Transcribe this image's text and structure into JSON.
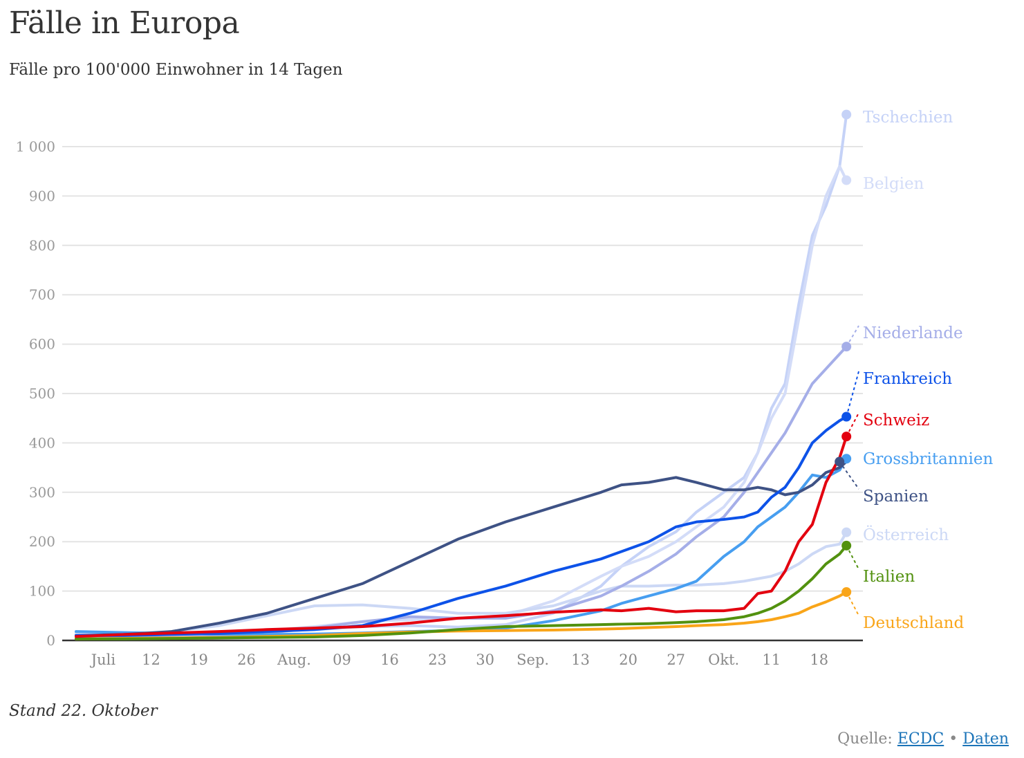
{
  "header": {
    "title": "Fälle in Europa",
    "subtitle": "Fälle pro 100'000 Einwohner in 14 Tagen"
  },
  "footer": {
    "note": "Stand 22. Oktober",
    "source_label": "Quelle:",
    "source_link": "ECDC",
    "separator": "•",
    "data_link": "Daten"
  },
  "chart_data": {
    "type": "line",
    "title": "Fälle in Europa",
    "subtitle": "Fälle pro 100'000 Einwohner in 14 Tagen",
    "xlabel": "",
    "ylabel": "",
    "ylim": [
      0,
      1000
    ],
    "yticks": [
      0,
      100,
      200,
      300,
      400,
      500,
      600,
      700,
      800,
      900,
      1000
    ],
    "ytick_labels": [
      "0",
      "100",
      "200",
      "300",
      "400",
      "500",
      "600",
      "700",
      "800",
      "900",
      "1 000"
    ],
    "x_start": "2020-07-01",
    "x_end": "2020-10-22",
    "xticks": [
      {
        "day": 4,
        "label": "Juli"
      },
      {
        "day": 11,
        "label": "12"
      },
      {
        "day": 18,
        "label": "19"
      },
      {
        "day": 25,
        "label": "26"
      },
      {
        "day": 32,
        "label": "Aug."
      },
      {
        "day": 39,
        "label": "09"
      },
      {
        "day": 46,
        "label": "16"
      },
      {
        "day": 53,
        "label": "23"
      },
      {
        "day": 60,
        "label": "30"
      },
      {
        "day": 67,
        "label": "Sep."
      },
      {
        "day": 74,
        "label": "13"
      },
      {
        "day": 81,
        "label": "20"
      },
      {
        "day": 88,
        "label": "27"
      },
      {
        "day": 95,
        "label": "Okt."
      },
      {
        "day": 102,
        "label": "11"
      },
      {
        "day": 109,
        "label": "18"
      }
    ],
    "grid": true,
    "legend": "direct-labels-right",
    "x_days": [
      0,
      7,
      14,
      21,
      28,
      35,
      42,
      49,
      56,
      63,
      70,
      77,
      80,
      84,
      88,
      91,
      95,
      98,
      100,
      102,
      104,
      106,
      108,
      110,
      112,
      113
    ],
    "series": [
      {
        "name": "Tschechien",
        "color": "#c5d2f7",
        "label_value": 1065,
        "values": [
          12,
          10,
          12,
          15,
          18,
          22,
          28,
          30,
          27,
          32,
          55,
          110,
          150,
          190,
          220,
          260,
          300,
          330,
          380,
          470,
          520,
          680,
          820,
          880,
          960,
          1065
        ]
      },
      {
        "name": "Belgien",
        "color": "#d3dcf8",
        "label_value": 932,
        "values": [
          15,
          15,
          15,
          15,
          20,
          28,
          38,
          42,
          45,
          50,
          80,
          130,
          150,
          170,
          200,
          230,
          270,
          320,
          380,
          450,
          500,
          650,
          800,
          900,
          960,
          932
        ]
      },
      {
        "name": "Niederlande",
        "color": "#a5aee8",
        "label_value": 595,
        "values": [
          5,
          5,
          6,
          8,
          15,
          25,
          38,
          48,
          45,
          45,
          60,
          90,
          110,
          140,
          175,
          210,
          250,
          300,
          340,
          380,
          420,
          470,
          520,
          550,
          580,
          595
        ]
      },
      {
        "name": "Frankreich",
        "color": "#0d52e8",
        "label_value": 453,
        "values": [
          10,
          10,
          12,
          14,
          18,
          22,
          30,
          55,
          85,
          110,
          140,
          165,
          180,
          200,
          230,
          240,
          245,
          250,
          260,
          290,
          310,
          350,
          400,
          425,
          445,
          453
        ]
      },
      {
        "name": "Schweiz",
        "color": "#e3000f",
        "label_value": 413,
        "values": [
          8,
          12,
          15,
          18,
          22,
          25,
          28,
          35,
          45,
          50,
          57,
          62,
          60,
          65,
          58,
          60,
          60,
          65,
          95,
          100,
          140,
          200,
          235,
          320,
          370,
          413
        ]
      },
      {
        "name": "Grossbritannien",
        "color": "#479ef0",
        "label_value": 368,
        "values": [
          18,
          16,
          14,
          13,
          12,
          13,
          15,
          18,
          20,
          25,
          40,
          60,
          75,
          90,
          105,
          120,
          170,
          200,
          230,
          250,
          270,
          300,
          335,
          330,
          345,
          368
        ]
      },
      {
        "name": "Spanien",
        "color": "#3e5285",
        "label_value": 362,
        "values": [
          10,
          12,
          18,
          35,
          55,
          85,
          115,
          160,
          205,
          240,
          270,
          300,
          315,
          320,
          330,
          320,
          305,
          305,
          310,
          305,
          295,
          300,
          315,
          340,
          350,
          362
        ]
      },
      {
        "name": "Österreich",
        "color": "#ccd8f5",
        "label_value": 219,
        "values": [
          5,
          10,
          18,
          30,
          50,
          70,
          72,
          65,
          55,
          55,
          70,
          100,
          110,
          110,
          112,
          112,
          115,
          120,
          125,
          130,
          140,
          155,
          175,
          190,
          195,
          219
        ]
      },
      {
        "name": "Italien",
        "color": "#52910f",
        "label_value": 192,
        "values": [
          3,
          3,
          4,
          5,
          6,
          7,
          10,
          15,
          22,
          28,
          30,
          32,
          33,
          34,
          36,
          38,
          42,
          48,
          55,
          65,
          80,
          100,
          125,
          155,
          175,
          192
        ]
      },
      {
        "name": "Deutschland",
        "color": "#f9a519",
        "label_value": 98,
        "values": [
          3,
          4,
          5,
          6,
          8,
          10,
          14,
          17,
          19,
          20,
          21,
          23,
          24,
          26,
          28,
          30,
          32,
          35,
          38,
          42,
          48,
          55,
          68,
          78,
          90,
          98
        ]
      }
    ]
  }
}
